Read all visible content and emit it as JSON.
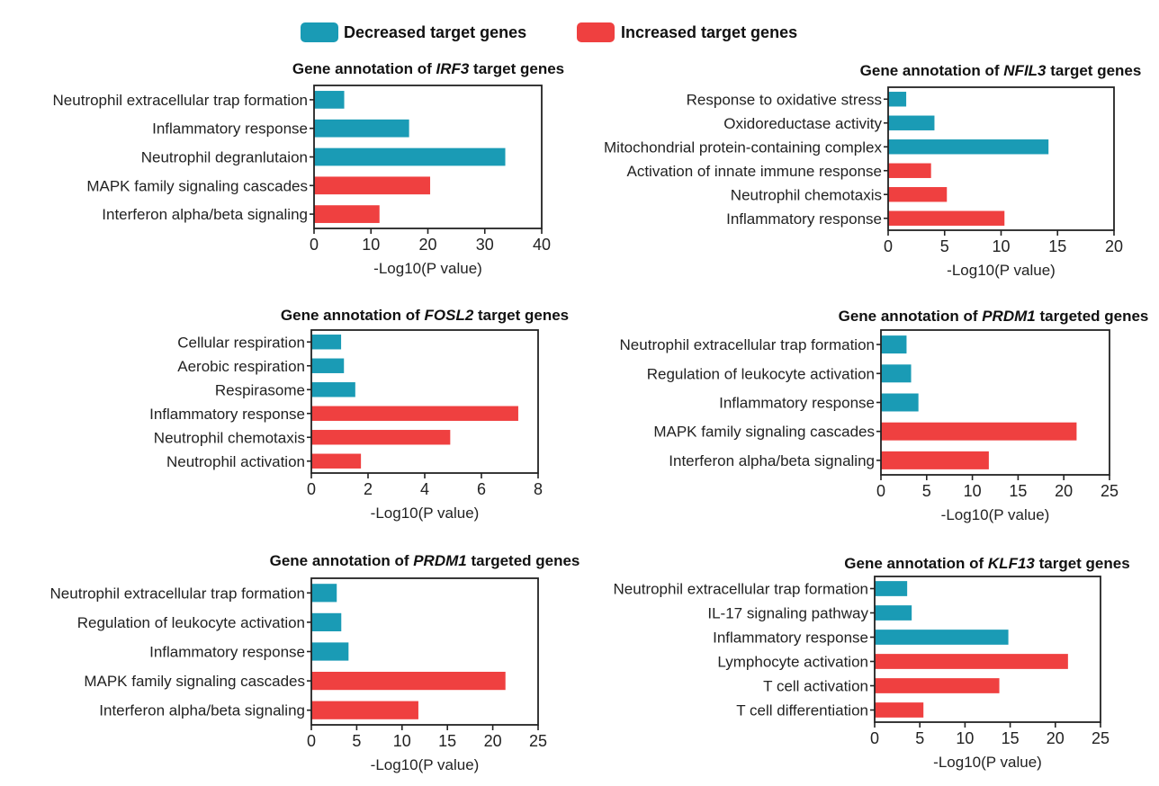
{
  "legend": {
    "decreased_label": "Decreased target genes",
    "increased_label": "Increased target genes",
    "decreased_color": "#1a9bb5",
    "increased_color": "#ef4040"
  },
  "chart_data": [
    {
      "type": "bar",
      "orientation": "horizontal",
      "title_pre": "Gene annotation of ",
      "title_gene": "IRF3",
      "title_post": " target genes",
      "xlabel": "-Log10(P value)",
      "xlim": [
        0,
        40
      ],
      "xticks": [
        0,
        10,
        20,
        30,
        40
      ],
      "categories": [
        "Neutrophil extracellular trap formation",
        "Inflammatory response",
        "Neutrophil degranlutaion",
        "MAPK family signaling cascades",
        "Interferon alpha/beta signaling"
      ],
      "values": [
        5.3,
        16.7,
        33.6,
        20.4,
        11.5
      ],
      "direction": [
        "decreased",
        "decreased",
        "decreased",
        "increased",
        "increased"
      ]
    },
    {
      "type": "bar",
      "orientation": "horizontal",
      "title_pre": "Gene annotation of ",
      "title_gene": "NFIL3",
      "title_post": " target genes",
      "xlabel": "-Log10(P value)",
      "xlim": [
        0,
        20
      ],
      "xticks": [
        0,
        5,
        10,
        15,
        20
      ],
      "categories": [
        "Response to oxidative stress",
        "Oxidoreductase activity",
        "Mitochondrial protein-containing complex",
        "Activation of innate immune response",
        "Neutrophil chemotaxis",
        "Inflammatory response"
      ],
      "values": [
        1.6,
        4.1,
        14.2,
        3.8,
        5.2,
        10.3
      ],
      "direction": [
        "decreased",
        "decreased",
        "decreased",
        "increased",
        "increased",
        "increased"
      ]
    },
    {
      "type": "bar",
      "orientation": "horizontal",
      "title_pre": "Gene annotation of ",
      "title_gene": "FOSL2",
      "title_post": " target genes",
      "xlabel": "-Log10(P value)",
      "xlim": [
        0,
        8
      ],
      "xticks": [
        0,
        2,
        4,
        6,
        8
      ],
      "categories": [
        "Cellular respiration",
        "Aerobic respiration",
        "Respirasome",
        "Inflammatory response",
        "Neutrophil chemotaxis",
        "Neutrophil activation"
      ],
      "values": [
        1.05,
        1.15,
        1.55,
        7.3,
        4.9,
        1.75
      ],
      "direction": [
        "decreased",
        "decreased",
        "decreased",
        "increased",
        "increased",
        "increased"
      ]
    },
    {
      "type": "bar",
      "orientation": "horizontal",
      "title_pre": "Gene annotation of ",
      "title_gene": "PRDM1",
      "title_post": " targeted genes",
      "xlabel": "-Log10(P value)",
      "xlim": [
        0,
        25
      ],
      "xticks": [
        0,
        5,
        10,
        15,
        20,
        25
      ],
      "categories": [
        "Neutrophil extracellular trap formation",
        "Regulation of leukocyte activation",
        "Inflammatory response",
        "MAPK family signaling cascades",
        "Interferon alpha/beta signaling"
      ],
      "values": [
        2.8,
        3.3,
        4.1,
        21.4,
        11.8
      ],
      "direction": [
        "decreased",
        "decreased",
        "decreased",
        "increased",
        "increased"
      ]
    },
    {
      "type": "bar",
      "orientation": "horizontal",
      "title_pre": "Gene annotation of ",
      "title_gene": "PRDM1",
      "title_post": " targeted genes",
      "xlabel": "-Log10(P value)",
      "xlim": [
        0,
        25
      ],
      "xticks": [
        0,
        5,
        10,
        15,
        20,
        25
      ],
      "categories": [
        "Neutrophil extracellular trap formation",
        "Regulation of leukocyte activation",
        "Inflammatory response",
        "MAPK family signaling cascades",
        "Interferon alpha/beta signaling"
      ],
      "values": [
        2.8,
        3.3,
        4.1,
        21.4,
        11.8
      ],
      "direction": [
        "decreased",
        "decreased",
        "decreased",
        "increased",
        "increased"
      ]
    },
    {
      "type": "bar",
      "orientation": "horizontal",
      "title_pre": "Gene annotation of ",
      "title_gene": "KLF13",
      "title_post": " target genes",
      "xlabel": "-Log10(P value)",
      "xlim": [
        0,
        25
      ],
      "xticks": [
        0,
        5,
        10,
        15,
        20,
        25
      ],
      "categories": [
        "Neutrophil extracellular trap formation",
        "IL-17 signaling pathway",
        "Inflammatory response",
        "Lymphocyte activation",
        "T cell activation",
        "T cell differentiation"
      ],
      "values": [
        3.6,
        4.1,
        14.8,
        21.4,
        13.8,
        5.4
      ],
      "direction": [
        "decreased",
        "decreased",
        "decreased",
        "increased",
        "increased",
        "increased"
      ]
    }
  ]
}
